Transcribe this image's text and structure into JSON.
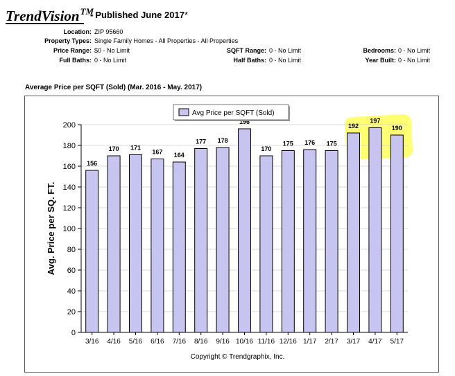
{
  "header": {
    "brand": "TrendVision",
    "trademark": "TM",
    "published": "Published June 2017",
    "asterisk": "*"
  },
  "criteria": {
    "location_label": "Location:",
    "location_value": "ZIP 95660",
    "property_types_label": "Property Types:",
    "property_types_value": "Single Family Homes - All Properties - All Properties",
    "price_range_label": "Price Range:",
    "price_range_value": "$0 - No Limit",
    "sqft_range_label": "SQFT Range:",
    "sqft_range_value": "0 - No Limit",
    "bedrooms_label": "Bedrooms:",
    "bedrooms_value": "0 - No Limit",
    "full_baths_label": "Full Baths:",
    "full_baths_value": "0 - No Limit",
    "half_baths_label": "Half Baths:",
    "half_baths_value": "0 - No Limit",
    "year_built_label": "Year Built:",
    "year_built_value": "0 - No Limit"
  },
  "colors": {
    "bar_fill": "#c8c4f0",
    "bar_stroke": "#000000",
    "highlight": "#ffff00"
  },
  "chart_data": {
    "type": "bar",
    "title": "Average Price per SQFT (Sold) (Mar. 2016 - May. 2017)",
    "ylabel": "Avg. Price per SQ. FT.",
    "xlabel": "",
    "categories": [
      "3/16",
      "4/16",
      "5/16",
      "6/16",
      "7/16",
      "8/16",
      "9/16",
      "10/16",
      "11/16",
      "12/16",
      "1/17",
      "2/17",
      "3/17",
      "4/17",
      "5/17"
    ],
    "series": [
      {
        "name": "Avg Price per SQFT (Sold)",
        "values": [
          156,
          170,
          171,
          167,
          164,
          177,
          178,
          196,
          170,
          175,
          176,
          175,
          192,
          197,
          190
        ]
      }
    ],
    "ylim": [
      0,
      200
    ],
    "yticks": [
      0,
      20,
      40,
      60,
      80,
      100,
      120,
      140,
      160,
      180,
      200
    ],
    "grid": true,
    "legend": "top-center",
    "highlighted_categories": [
      "3/17",
      "4/17",
      "5/17"
    ],
    "footer": "Copyright © Trendgraphix, Inc."
  }
}
